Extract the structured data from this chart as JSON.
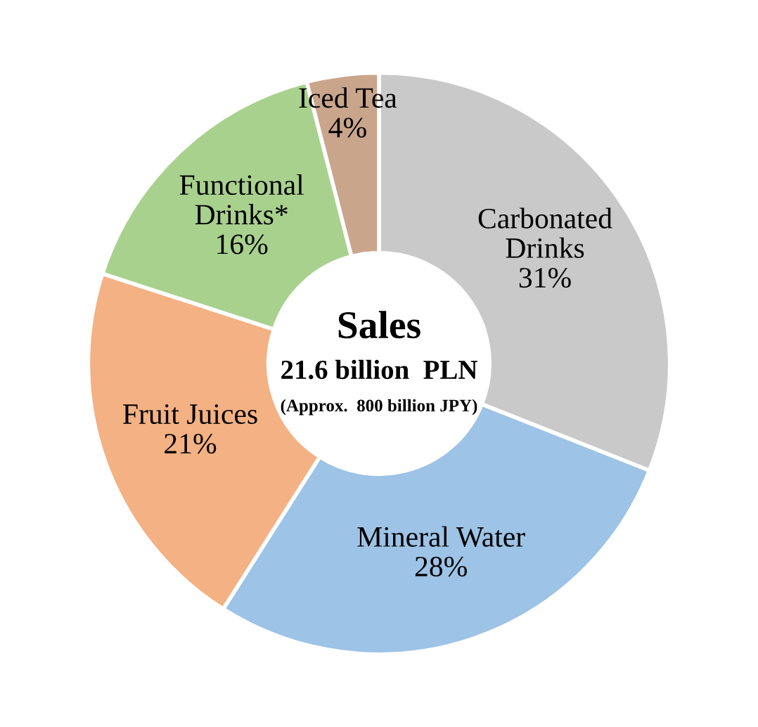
{
  "chart_data": {
    "type": "donut",
    "title": "Sales",
    "subtitle": "21.6 billion  PLN",
    "annotations": [
      "(Approx.  800 billion JPY)"
    ],
    "categories": [
      "Carbonated\nDrinks",
      "Mineral Water",
      "Fruit Juices",
      "Functional\nDrinks*",
      "Iced Tea"
    ],
    "values": [
      31,
      28,
      21,
      16,
      4
    ],
    "colors": [
      "#c9c9c9",
      "#9dc3e6",
      "#f4b183",
      "#a9d18e",
      "#c9a58c"
    ],
    "value_labels": [
      "31%",
      "28%",
      "21%",
      "16%",
      "4%"
    ],
    "legend": false
  }
}
